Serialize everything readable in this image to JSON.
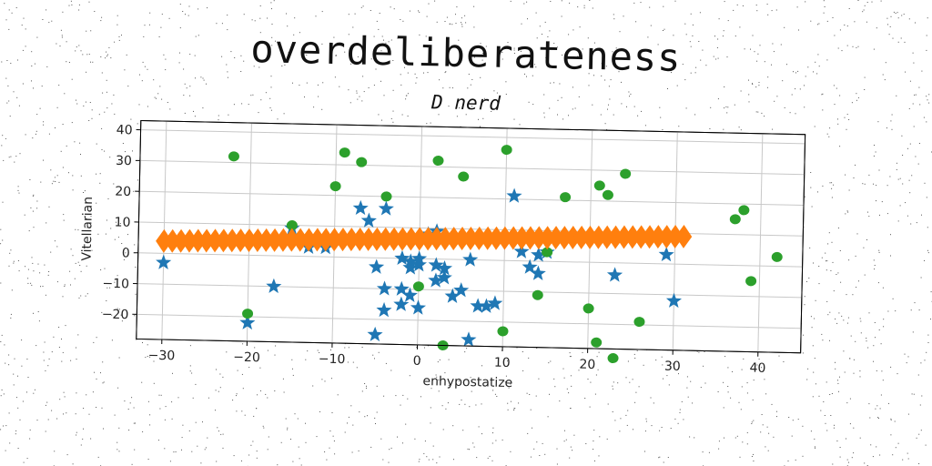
{
  "chart_data": {
    "type": "scatter",
    "title": "overdeliberateness",
    "subtitle": "D nerd",
    "xlabel": "enhypostatize",
    "ylabel": "Vitellarian",
    "xlim": [
      -33,
      45
    ],
    "ylim": [
      -28,
      43
    ],
    "xticks": [
      -30,
      -20,
      -10,
      0,
      10,
      20,
      30,
      40
    ],
    "yticks": [
      -20,
      -10,
      0,
      10,
      20,
      30,
      40
    ],
    "xtick_labels": [
      "−30",
      "−20",
      "−10",
      "0",
      "10",
      "20",
      "30",
      "40"
    ],
    "ytick_labels": [
      "−20",
      "−10",
      "0",
      "10",
      "20",
      "30",
      "40"
    ],
    "grid": true,
    "series": [
      {
        "marker": "star",
        "color": "#1f77b4",
        "points": [
          [
            -30,
            -3
          ],
          [
            -20,
            -22
          ],
          [
            -17,
            -10
          ],
          [
            -15,
            9
          ],
          [
            -13,
            3
          ],
          [
            -11,
            3
          ],
          [
            -7,
            16
          ],
          [
            -6,
            12
          ],
          [
            -5,
            -3
          ],
          [
            -5,
            -25
          ],
          [
            -4,
            16
          ],
          [
            -4,
            -10
          ],
          [
            -4,
            -17
          ],
          [
            -2,
            -10
          ],
          [
            -2,
            -15
          ],
          [
            -2,
            0
          ],
          [
            -1,
            -1
          ],
          [
            -1,
            -12
          ],
          [
            -1,
            -3
          ],
          [
            0,
            0
          ],
          [
            0,
            -2
          ],
          [
            0,
            -16
          ],
          [
            1,
            8
          ],
          [
            2,
            9
          ],
          [
            2,
            -7
          ],
          [
            2,
            -2
          ],
          [
            3,
            -3
          ],
          [
            3,
            -6
          ],
          [
            4,
            -12
          ],
          [
            5,
            -10
          ],
          [
            6,
            -26
          ],
          [
            6,
            0
          ],
          [
            7,
            -15
          ],
          [
            8,
            -15
          ],
          [
            9,
            -14
          ],
          [
            11,
            21
          ],
          [
            12,
            3
          ],
          [
            13,
            -2
          ],
          [
            14,
            -4
          ],
          [
            14,
            2
          ],
          [
            15,
            3
          ],
          [
            23,
            -4
          ],
          [
            29,
            3
          ],
          [
            30,
            -12
          ]
        ]
      },
      {
        "marker": "circle",
        "color": "#2ca02c",
        "points": [
          [
            -22,
            32
          ],
          [
            -20,
            -19
          ],
          [
            -15,
            10
          ],
          [
            -9,
            34
          ],
          [
            -10,
            23
          ],
          [
            -7,
            31
          ],
          [
            -4,
            20
          ],
          [
            0,
            -9
          ],
          [
            2,
            32
          ],
          [
            3,
            -28
          ],
          [
            5,
            27
          ],
          [
            10,
            36
          ],
          [
            10,
            -23
          ],
          [
            14,
            -11
          ],
          [
            15,
            3
          ],
          [
            17,
            21
          ],
          [
            20,
            -15
          ],
          [
            21,
            25
          ],
          [
            21,
            -26
          ],
          [
            22,
            22
          ],
          [
            23,
            -31
          ],
          [
            24,
            29
          ],
          [
            26,
            -19
          ],
          [
            37,
            15
          ],
          [
            38,
            18
          ],
          [
            39,
            -5
          ],
          [
            42,
            3
          ]
        ]
      },
      {
        "marker": "diamond",
        "color": "#ff7f0e",
        "x_range": [
          -30,
          31
        ],
        "y_range": [
          4,
          9
        ],
        "count": 62
      }
    ]
  }
}
